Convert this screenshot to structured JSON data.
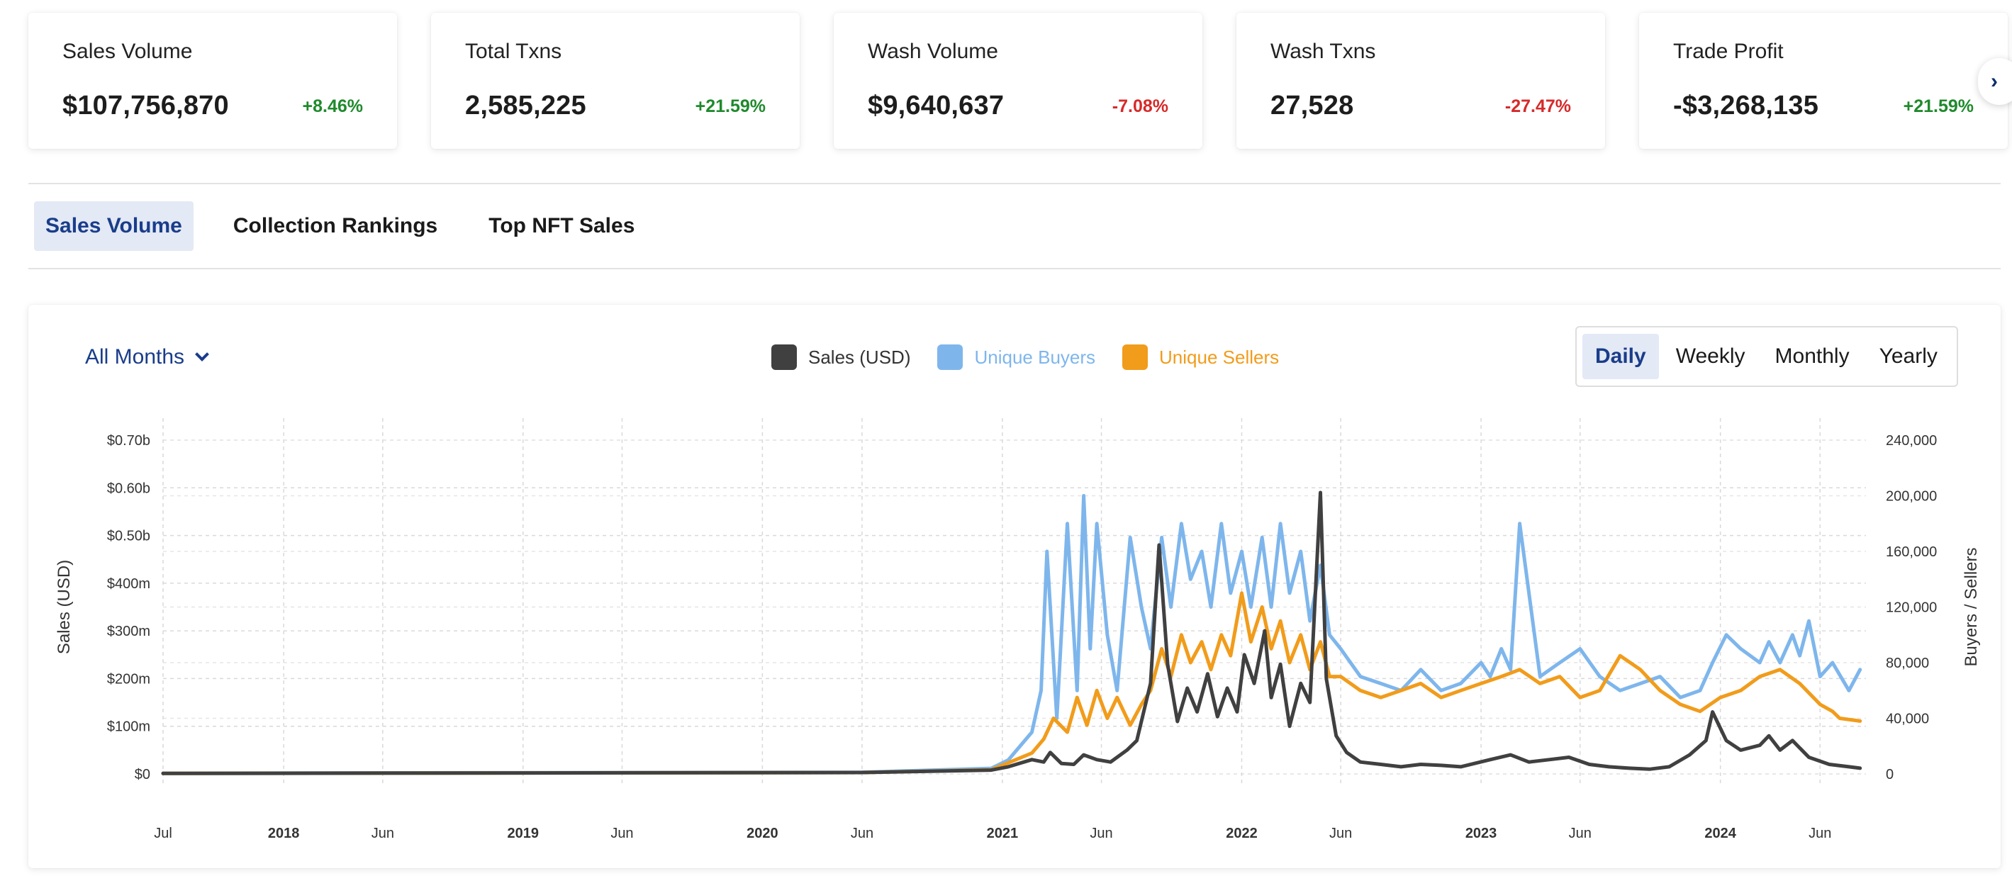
{
  "stats": [
    {
      "title": "Sales Volume",
      "value": "$107,756,870",
      "change": "+8.46%",
      "trend": "up"
    },
    {
      "title": "Total Txns",
      "value": "2,585,225",
      "change": "+21.59%",
      "trend": "up"
    },
    {
      "title": "Wash Volume",
      "value": "$9,640,637",
      "change": "-7.08%",
      "trend": "down"
    },
    {
      "title": "Wash Txns",
      "value": "27,528",
      "change": "-27.47%",
      "trend": "down"
    },
    {
      "title": "Trade Profit",
      "value": "-$3,268,135",
      "change": "+21.59%",
      "trend": "up"
    }
  ],
  "next_icon": "chevron-right-icon",
  "tabs": [
    {
      "label": "Sales Volume",
      "active": true
    },
    {
      "label": "Collection Rankings",
      "active": false
    },
    {
      "label": "Top NFT Sales",
      "active": false
    }
  ],
  "filter": {
    "label": "All Months",
    "icon": "chevron-down-icon"
  },
  "period_buttons": [
    {
      "label": "Daily",
      "active": true
    },
    {
      "label": "Weekly",
      "active": false
    },
    {
      "label": "Monthly",
      "active": false
    },
    {
      "label": "Yearly",
      "active": false
    }
  ],
  "colors": {
    "sales": "#404040",
    "buyers": "#7eb6ec",
    "sellers": "#f19c1b",
    "accent": "#1a3d8a",
    "positive": "#1f8a2c",
    "negative": "#d62a2a"
  },
  "chart_data": {
    "type": "line",
    "title": "",
    "ylabel": "Sales (USD)",
    "y2label": "Buyers / Sellers",
    "xlabel": "",
    "y_ticks": [
      "$0",
      "$100m",
      "$200m",
      "$300m",
      "$400m",
      "$0.50b",
      "$0.60b",
      "$0.70b"
    ],
    "y_tick_values": [
      0,
      100000000,
      200000000,
      300000000,
      400000000,
      500000000,
      600000000,
      700000000
    ],
    "y2_ticks": [
      "0",
      "40,000",
      "80,000",
      "120,000",
      "160,000",
      "200,000",
      "240,000"
    ],
    "y2_tick_values": [
      0,
      40000,
      80000,
      120000,
      160000,
      200000,
      240000
    ],
    "ylim": [
      0,
      700000000
    ],
    "y2lim": [
      0,
      240000
    ],
    "x_ticks": [
      {
        "label": "Jul",
        "date": "2017-07-01",
        "bold": false
      },
      {
        "label": "2018",
        "date": "2018-01-01",
        "bold": true
      },
      {
        "label": "Jun",
        "date": "2018-06-01",
        "bold": false
      },
      {
        "label": "2019",
        "date": "2019-01-01",
        "bold": true
      },
      {
        "label": "Jun",
        "date": "2019-06-01",
        "bold": false
      },
      {
        "label": "2020",
        "date": "2020-01-01",
        "bold": true
      },
      {
        "label": "Jun",
        "date": "2020-06-01",
        "bold": false
      },
      {
        "label": "2021",
        "date": "2021-01-01",
        "bold": true
      },
      {
        "label": "Jun",
        "date": "2021-06-01",
        "bold": false
      },
      {
        "label": "2022",
        "date": "2022-01-01",
        "bold": true
      },
      {
        "label": "Jun",
        "date": "2022-06-01",
        "bold": false
      },
      {
        "label": "2023",
        "date": "2023-01-01",
        "bold": true
      },
      {
        "label": "Jun",
        "date": "2023-06-01",
        "bold": false
      },
      {
        "label": "2024",
        "date": "2024-01-01",
        "bold": true
      },
      {
        "label": "Jun",
        "date": "2024-06-01",
        "bold": false
      }
    ],
    "grid": true,
    "legend_position": "top-center",
    "series": [
      {
        "name": "Sales (USD)",
        "axis": "left",
        "color": "#404040",
        "x": [
          "2017-07-01",
          "2020-06-01",
          "2020-12-15",
          "2021-01-10",
          "2021-02-15",
          "2021-03-05",
          "2021-03-15",
          "2021-04-01",
          "2021-04-20",
          "2021-05-05",
          "2021-05-25",
          "2021-06-15",
          "2021-07-10",
          "2021-07-25",
          "2021-08-15",
          "2021-08-28",
          "2021-09-10",
          "2021-09-25",
          "2021-10-10",
          "2021-10-25",
          "2021-11-10",
          "2021-11-25",
          "2021-12-10",
          "2021-12-25",
          "2022-01-05",
          "2022-01-20",
          "2022-02-05",
          "2022-02-15",
          "2022-03-01",
          "2022-03-15",
          "2022-04-01",
          "2022-04-15",
          "2022-05-01",
          "2022-05-10",
          "2022-05-25",
          "2022-06-10",
          "2022-07-01",
          "2022-08-01",
          "2022-09-01",
          "2022-10-01",
          "2022-11-01",
          "2022-12-01",
          "2023-01-15",
          "2023-02-15",
          "2023-03-15",
          "2023-04-15",
          "2023-05-15",
          "2023-06-15",
          "2023-07-15",
          "2023-08-15",
          "2023-09-15",
          "2023-10-15",
          "2023-11-15",
          "2023-12-10",
          "2023-12-20",
          "2024-01-10",
          "2024-02-01",
          "2024-03-01",
          "2024-03-15",
          "2024-04-01",
          "2024-04-20",
          "2024-05-15",
          "2024-06-15",
          "2024-07-15",
          "2024-08-01"
        ],
        "values": [
          1000000,
          3000000,
          8000000,
          15000000,
          30000000,
          25000000,
          45000000,
          22000000,
          20000000,
          40000000,
          30000000,
          25000000,
          50000000,
          70000000,
          190000000,
          480000000,
          230000000,
          110000000,
          180000000,
          130000000,
          210000000,
          120000000,
          180000000,
          130000000,
          250000000,
          190000000,
          300000000,
          160000000,
          230000000,
          100000000,
          190000000,
          150000000,
          590000000,
          200000000,
          80000000,
          45000000,
          25000000,
          20000000,
          15000000,
          20000000,
          18000000,
          15000000,
          30000000,
          40000000,
          25000000,
          30000000,
          35000000,
          20000000,
          15000000,
          12000000,
          10000000,
          15000000,
          40000000,
          70000000,
          130000000,
          70000000,
          50000000,
          60000000,
          80000000,
          50000000,
          70000000,
          35000000,
          20000000,
          15000000,
          12000000
        ]
      },
      {
        "name": "Unique Buyers",
        "axis": "right",
        "color": "#7eb6ec",
        "x": [
          "2017-07-01",
          "2020-06-01",
          "2020-12-15",
          "2021-01-10",
          "2021-02-15",
          "2021-03-01",
          "2021-03-10",
          "2021-03-25",
          "2021-04-10",
          "2021-04-25",
          "2021-05-05",
          "2021-05-15",
          "2021-05-25",
          "2021-06-10",
          "2021-06-25",
          "2021-07-15",
          "2021-08-01",
          "2021-08-15",
          "2021-09-01",
          "2021-09-15",
          "2021-10-01",
          "2021-10-15",
          "2021-11-01",
          "2021-11-15",
          "2021-12-01",
          "2021-12-15",
          "2022-01-01",
          "2022-01-15",
          "2022-02-01",
          "2022-02-15",
          "2022-03-01",
          "2022-03-15",
          "2022-04-01",
          "2022-04-15",
          "2022-05-01",
          "2022-05-15",
          "2022-06-01",
          "2022-07-01",
          "2022-08-01",
          "2022-09-01",
          "2022-10-01",
          "2022-11-01",
          "2022-12-01",
          "2023-01-01",
          "2023-01-15",
          "2023-02-01",
          "2023-02-15",
          "2023-03-01",
          "2023-04-01",
          "2023-05-01",
          "2023-06-01",
          "2023-07-01",
          "2023-08-01",
          "2023-09-01",
          "2023-10-01",
          "2023-11-01",
          "2023-12-01",
          "2023-12-20",
          "2024-01-10",
          "2024-02-01",
          "2024-03-01",
          "2024-03-15",
          "2024-04-01",
          "2024-04-20",
          "2024-05-01",
          "2024-05-15",
          "2024-06-01",
          "2024-06-20",
          "2024-07-15",
          "2024-08-01"
        ],
        "values": [
          500,
          1200,
          4000,
          10000,
          30000,
          60000,
          160000,
          40000,
          180000,
          60000,
          200000,
          90000,
          180000,
          100000,
          60000,
          170000,
          120000,
          90000,
          170000,
          120000,
          180000,
          140000,
          160000,
          120000,
          180000,
          130000,
          160000,
          120000,
          170000,
          120000,
          180000,
          130000,
          160000,
          110000,
          150000,
          100000,
          90000,
          70000,
          65000,
          60000,
          75000,
          60000,
          65000,
          80000,
          70000,
          90000,
          75000,
          180000,
          70000,
          80000,
          90000,
          70000,
          60000,
          65000,
          70000,
          55000,
          60000,
          80000,
          100000,
          90000,
          80000,
          95000,
          80000,
          100000,
          85000,
          110000,
          70000,
          80000,
          60000,
          75000
        ]
      },
      {
        "name": "Unique Sellers",
        "axis": "right",
        "color": "#f19c1b",
        "x": [
          "2017-07-01",
          "2020-06-01",
          "2020-12-15",
          "2021-01-10",
          "2021-02-15",
          "2021-03-05",
          "2021-03-20",
          "2021-04-10",
          "2021-04-25",
          "2021-05-10",
          "2021-05-25",
          "2021-06-10",
          "2021-06-25",
          "2021-07-15",
          "2021-08-01",
          "2021-08-15",
          "2021-09-01",
          "2021-09-15",
          "2021-10-01",
          "2021-10-15",
          "2021-11-01",
          "2021-11-15",
          "2021-12-01",
          "2021-12-15",
          "2022-01-01",
          "2022-01-15",
          "2022-02-01",
          "2022-02-15",
          "2022-03-01",
          "2022-03-15",
          "2022-04-01",
          "2022-04-15",
          "2022-05-01",
          "2022-05-15",
          "2022-06-01",
          "2022-07-01",
          "2022-08-01",
          "2022-09-01",
          "2022-10-01",
          "2022-11-01",
          "2022-12-01",
          "2023-01-01",
          "2023-02-01",
          "2023-03-01",
          "2023-04-01",
          "2023-05-01",
          "2023-06-01",
          "2023-07-01",
          "2023-08-01",
          "2023-09-01",
          "2023-10-01",
          "2023-11-01",
          "2023-12-01",
          "2024-01-01",
          "2024-02-01",
          "2024-03-01",
          "2024-04-01",
          "2024-05-01",
          "2024-06-01",
          "2024-06-20",
          "2024-07-01",
          "2024-08-01"
        ],
        "values": [
          400,
          1000,
          3000,
          8000,
          15000,
          25000,
          40000,
          30000,
          55000,
          35000,
          60000,
          40000,
          55000,
          35000,
          50000,
          60000,
          90000,
          70000,
          100000,
          80000,
          95000,
          75000,
          100000,
          85000,
          130000,
          95000,
          120000,
          90000,
          110000,
          80000,
          100000,
          75000,
          95000,
          70000,
          70000,
          60000,
          55000,
          60000,
          65000,
          55000,
          60000,
          65000,
          70000,
          75000,
          65000,
          70000,
          55000,
          60000,
          85000,
          75000,
          60000,
          50000,
          45000,
          55000,
          60000,
          70000,
          75000,
          65000,
          50000,
          45000,
          40000,
          38000
        ]
      }
    ]
  }
}
